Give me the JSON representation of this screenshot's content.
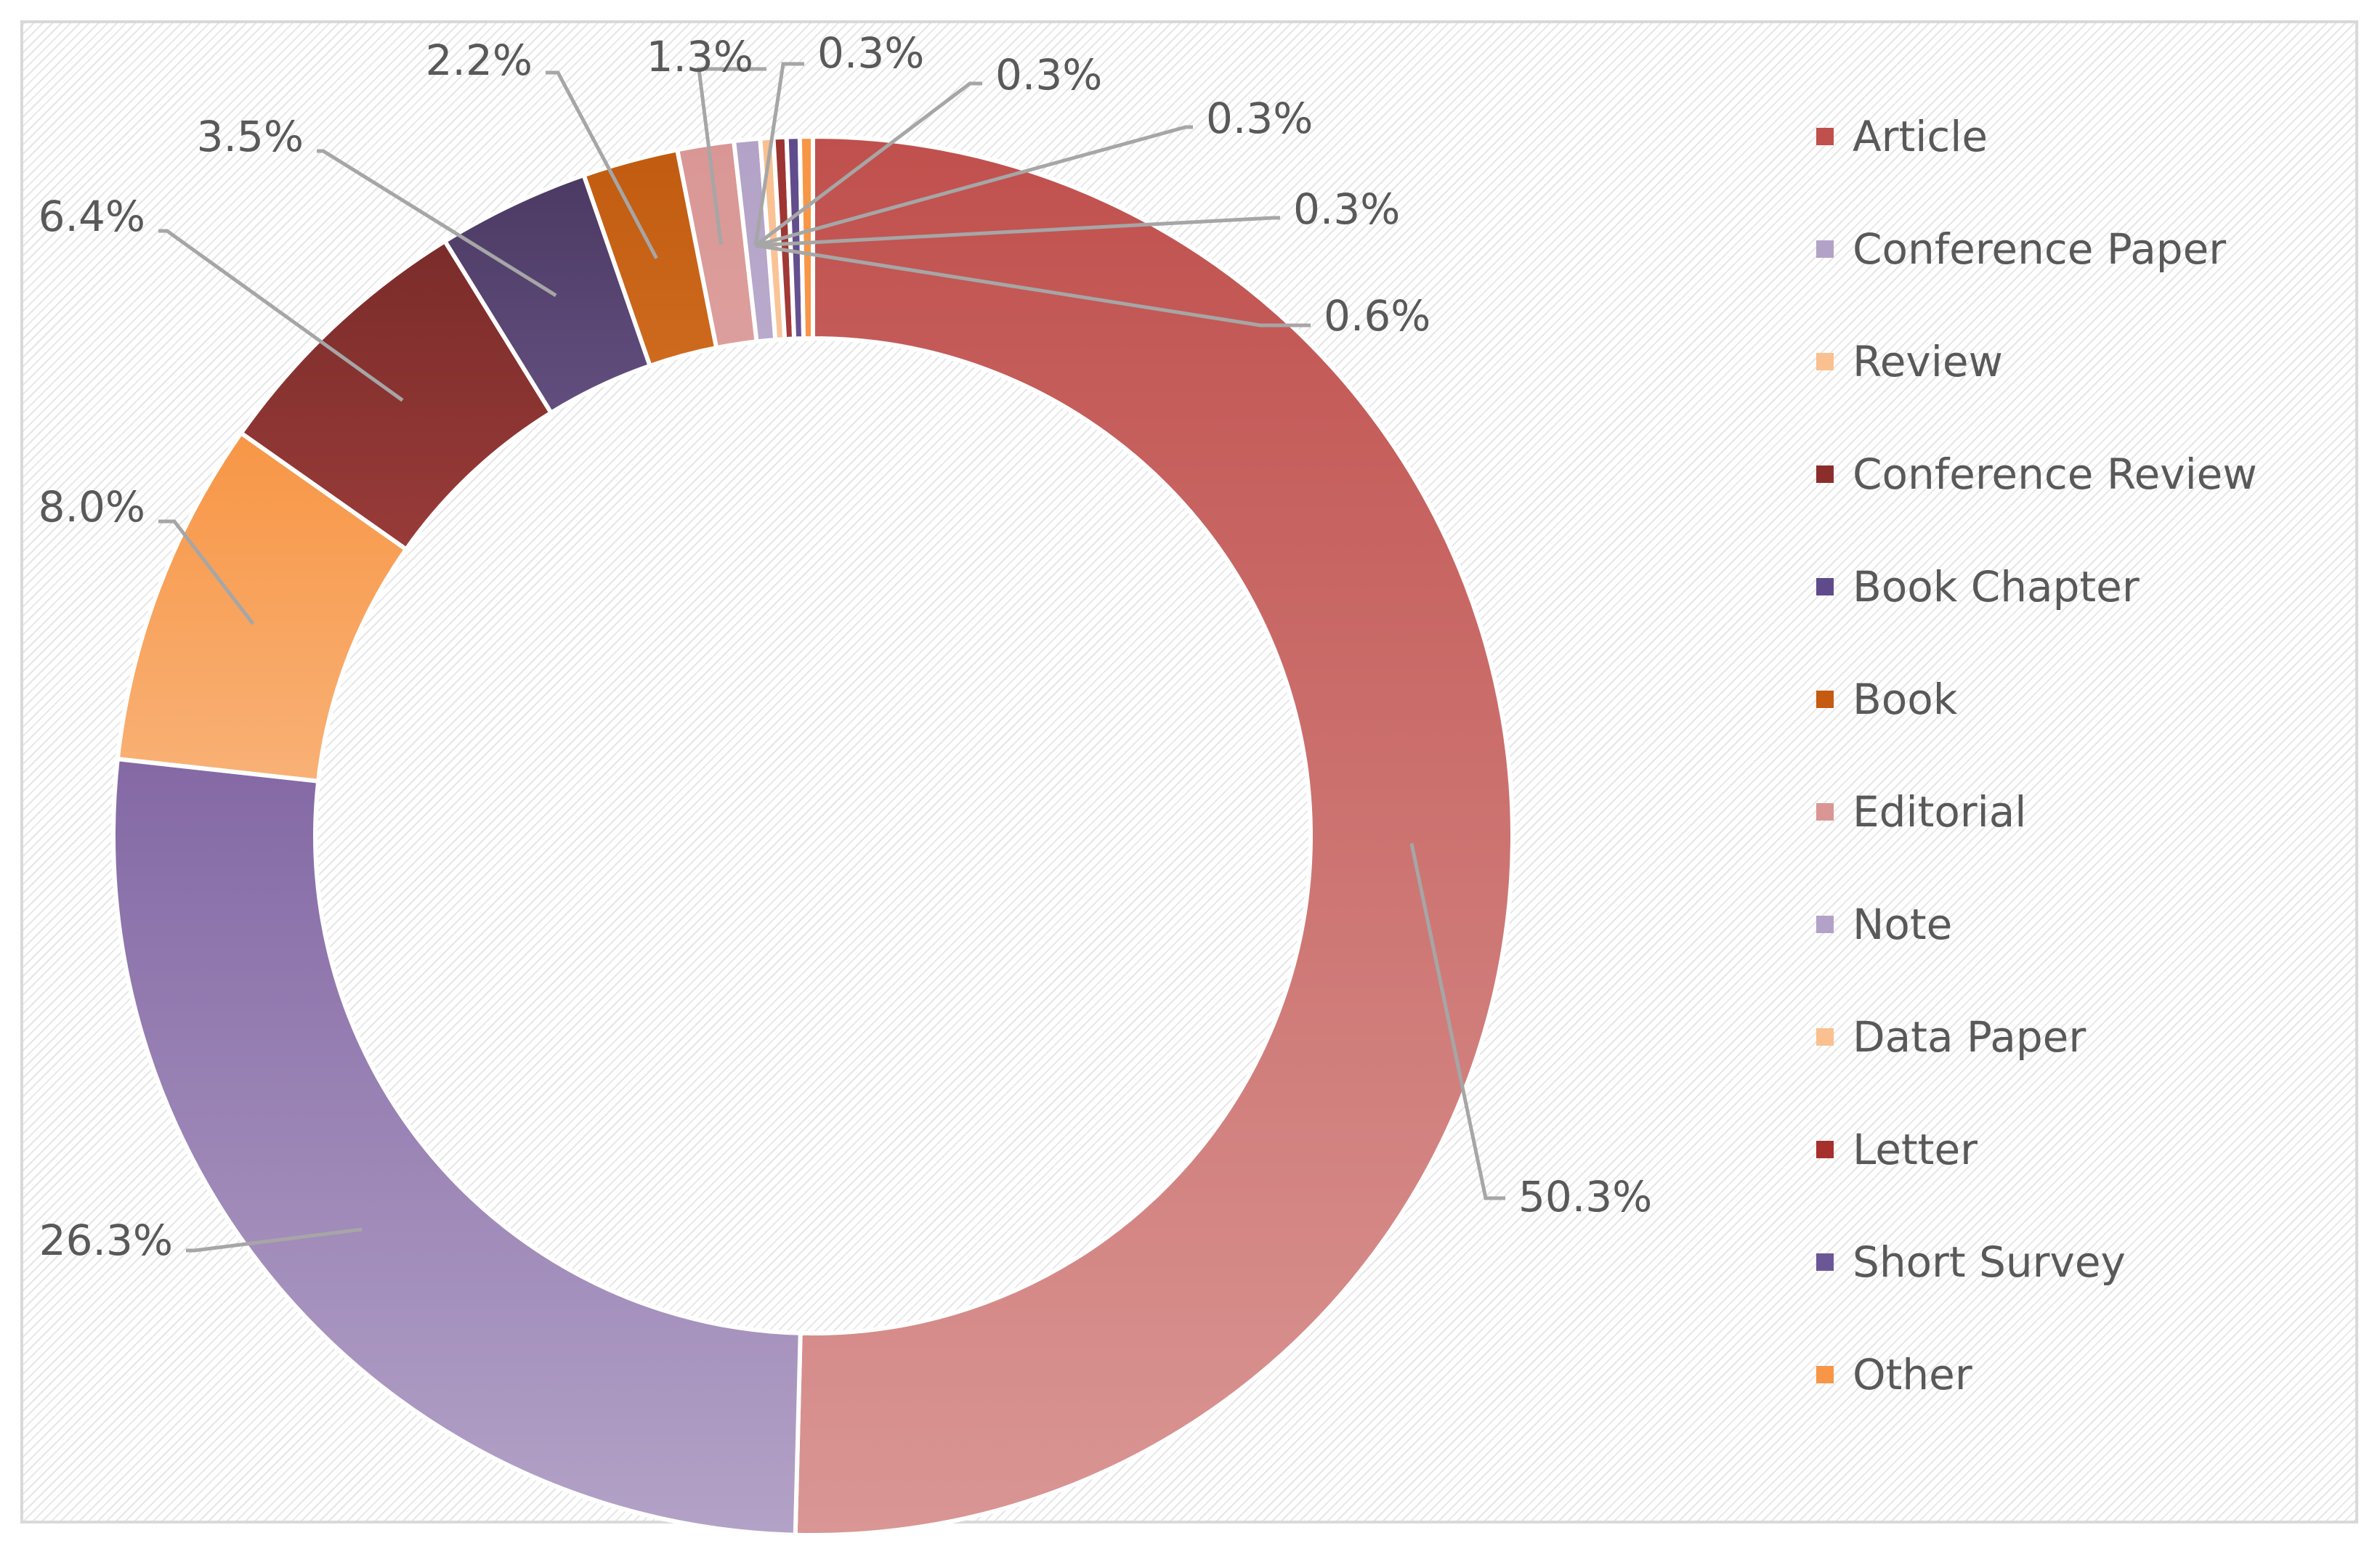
{
  "chart_data": {
    "type": "pie",
    "variant": "donut",
    "title": "",
    "legend_position": "right",
    "categories": [
      "Article",
      "Conference Paper",
      "Review",
      "Conference Review",
      "Book Chapter",
      "Book",
      "Editorial",
      "Note",
      "Data Paper",
      "Letter",
      "Short Survey",
      "Other"
    ],
    "values": [
      50.3,
      26.3,
      8.0,
      6.4,
      3.5,
      2.2,
      1.3,
      0.6,
      0.3,
      0.3,
      0.3,
      0.3
    ],
    "labels": [
      "50.3%",
      "26.3%",
      "8.0%",
      "6.4%",
      "3.5%",
      "2.2%",
      "1.3%",
      "0.6%",
      "0.3%",
      "0.3%",
      "0.3%",
      "0.3%"
    ],
    "colors": [
      [
        "#c0504d",
        "#d99694"
      ],
      [
        "#8064a2",
        "#b3a2c7"
      ],
      [
        "#f79646",
        "#fac090"
      ],
      [
        "#7b2c2a",
        "#c0504d"
      ],
      [
        "#4b3a63",
        "#9b7fc0"
      ],
      [
        "#c05b10",
        "#f79646"
      ],
      [
        "#d99694",
        "#e6b9b8"
      ],
      [
        "#b3a2c7",
        "#ccc1da"
      ],
      [
        "#fac090",
        "#fcd5b4"
      ],
      [
        "#9b3431",
        "#c0504d"
      ],
      [
        "#5f4b8b",
        "#8064a2"
      ],
      [
        "#f79646",
        "#f79646"
      ]
    ],
    "legend_colors": [
      "#c0504d",
      "#b3a2c7",
      "#fac090",
      "#8b2e2b",
      "#5f4b8b",
      "#c55a11",
      "#d99694",
      "#b3a2c7",
      "#fac090",
      "#a5302c",
      "#6b5796",
      "#f79646"
    ]
  }
}
